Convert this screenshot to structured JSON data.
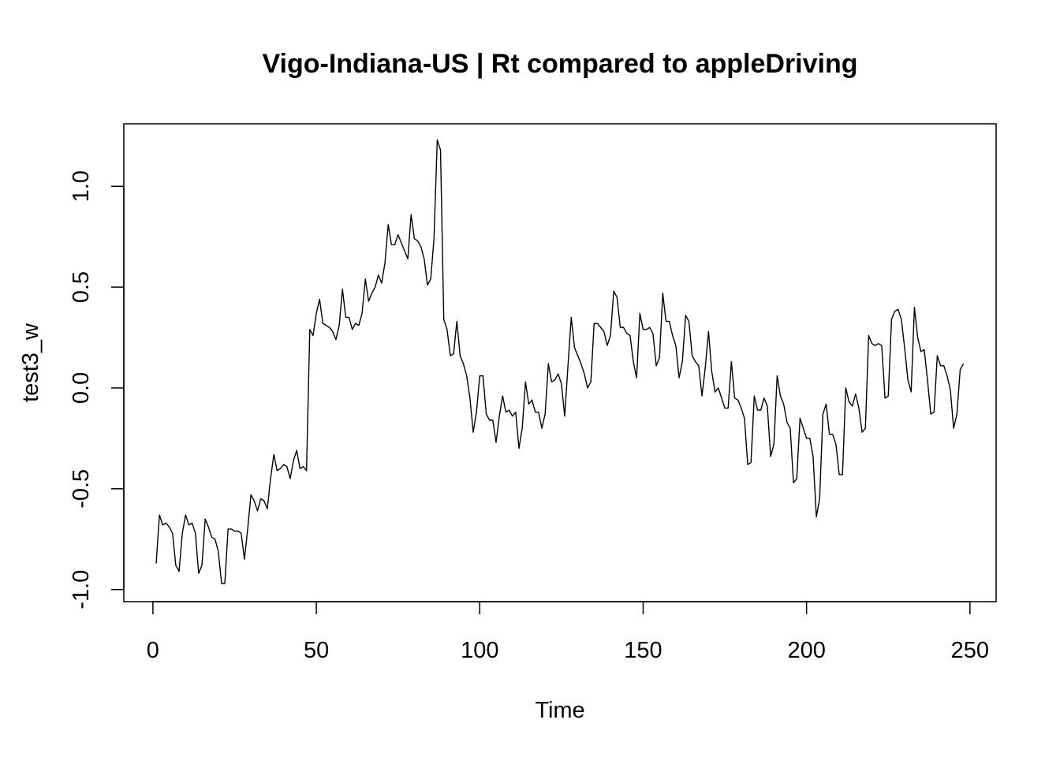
{
  "chart_data": {
    "type": "line",
    "title": "Vigo-Indiana-US | Rt compared to appleDriving",
    "xlabel": "Time",
    "ylabel": "test3_w",
    "xlim": [
      -8.9,
      258
    ],
    "ylim": [
      -1.06,
      1.31
    ],
    "x_ticks": [
      0,
      50,
      100,
      150,
      200,
      250
    ],
    "y_ticks": [
      -1.0,
      -0.5,
      0.0,
      0.5,
      1.0
    ],
    "x_tick_labels": [
      "0",
      "50",
      "100",
      "150",
      "200",
      "250"
    ],
    "y_tick_labels": [
      "-1.0",
      "-0.5",
      "0.0",
      "0.5",
      "1.0"
    ],
    "grid": false,
    "x_start": 1,
    "series": [
      {
        "color": "#000000",
        "values": [
          -0.87,
          -0.63,
          -0.68,
          -0.67,
          -0.69,
          -0.72,
          -0.88,
          -0.91,
          -0.72,
          -0.63,
          -0.68,
          -0.67,
          -0.72,
          -0.92,
          -0.88,
          -0.65,
          -0.69,
          -0.74,
          -0.75,
          -0.81,
          -0.97,
          -0.97,
          -0.7,
          -0.7,
          -0.71,
          -0.71,
          -0.72,
          -0.85,
          -0.7,
          -0.53,
          -0.56,
          -0.61,
          -0.55,
          -0.56,
          -0.6,
          -0.45,
          -0.33,
          -0.41,
          -0.4,
          -0.38,
          -0.39,
          -0.45,
          -0.36,
          -0.31,
          -0.4,
          -0.39,
          -0.41,
          0.29,
          0.26,
          0.37,
          0.44,
          0.32,
          0.31,
          0.3,
          0.28,
          0.24,
          0.31,
          0.49,
          0.35,
          0.35,
          0.29,
          0.32,
          0.31,
          0.37,
          0.54,
          0.43,
          0.47,
          0.5,
          0.56,
          0.52,
          0.62,
          0.81,
          0.71,
          0.71,
          0.76,
          0.72,
          0.68,
          0.64,
          0.86,
          0.74,
          0.73,
          0.7,
          0.64,
          0.51,
          0.54,
          0.74,
          1.23,
          1.18,
          0.34,
          0.29,
          0.16,
          0.17,
          0.33,
          0.16,
          0.12,
          0.06,
          -0.05,
          -0.22,
          -0.12,
          0.06,
          0.06,
          -0.13,
          -0.16,
          -0.16,
          -0.27,
          -0.14,
          -0.04,
          -0.12,
          -0.11,
          -0.14,
          -0.12,
          -0.3,
          -0.2,
          0.03,
          -0.08,
          -0.06,
          -0.12,
          -0.12,
          -0.2,
          -0.13,
          0.12,
          0.03,
          0.04,
          0.07,
          0.02,
          -0.14,
          0.11,
          0.35,
          0.2,
          0.16,
          0.12,
          0.07,
          0.0,
          0.03,
          0.32,
          0.32,
          0.3,
          0.28,
          0.21,
          0.26,
          0.48,
          0.45,
          0.3,
          0.3,
          0.27,
          0.26,
          0.13,
          0.05,
          0.37,
          0.29,
          0.29,
          0.3,
          0.27,
          0.11,
          0.15,
          0.47,
          0.33,
          0.33,
          0.26,
          0.21,
          0.05,
          0.13,
          0.36,
          0.33,
          0.16,
          0.13,
          0.11,
          -0.04,
          0.1,
          0.28,
          0.08,
          -0.02,
          0.0,
          -0.05,
          -0.1,
          -0.1,
          0.13,
          -0.05,
          -0.06,
          -0.1,
          -0.15,
          -0.38,
          -0.37,
          -0.04,
          -0.11,
          -0.11,
          -0.05,
          -0.09,
          -0.34,
          -0.28,
          0.06,
          -0.04,
          -0.08,
          -0.17,
          -0.2,
          -0.47,
          -0.45,
          -0.15,
          -0.2,
          -0.25,
          -0.25,
          -0.34,
          -0.64,
          -0.55,
          -0.13,
          -0.08,
          -0.23,
          -0.23,
          -0.28,
          -0.43,
          -0.43,
          0.0,
          -0.07,
          -0.09,
          -0.03,
          -0.1,
          -0.22,
          -0.2,
          0.26,
          0.22,
          0.21,
          0.22,
          0.21,
          -0.05,
          -0.04,
          0.34,
          0.38,
          0.39,
          0.34,
          0.2,
          0.04,
          -0.02,
          0.4,
          0.25,
          0.18,
          0.19,
          0.04,
          -0.13,
          -0.12,
          0.16,
          0.11,
          0.11,
          0.06,
          -0.01,
          -0.2,
          -0.13,
          0.09,
          0.12
        ]
      }
    ]
  }
}
